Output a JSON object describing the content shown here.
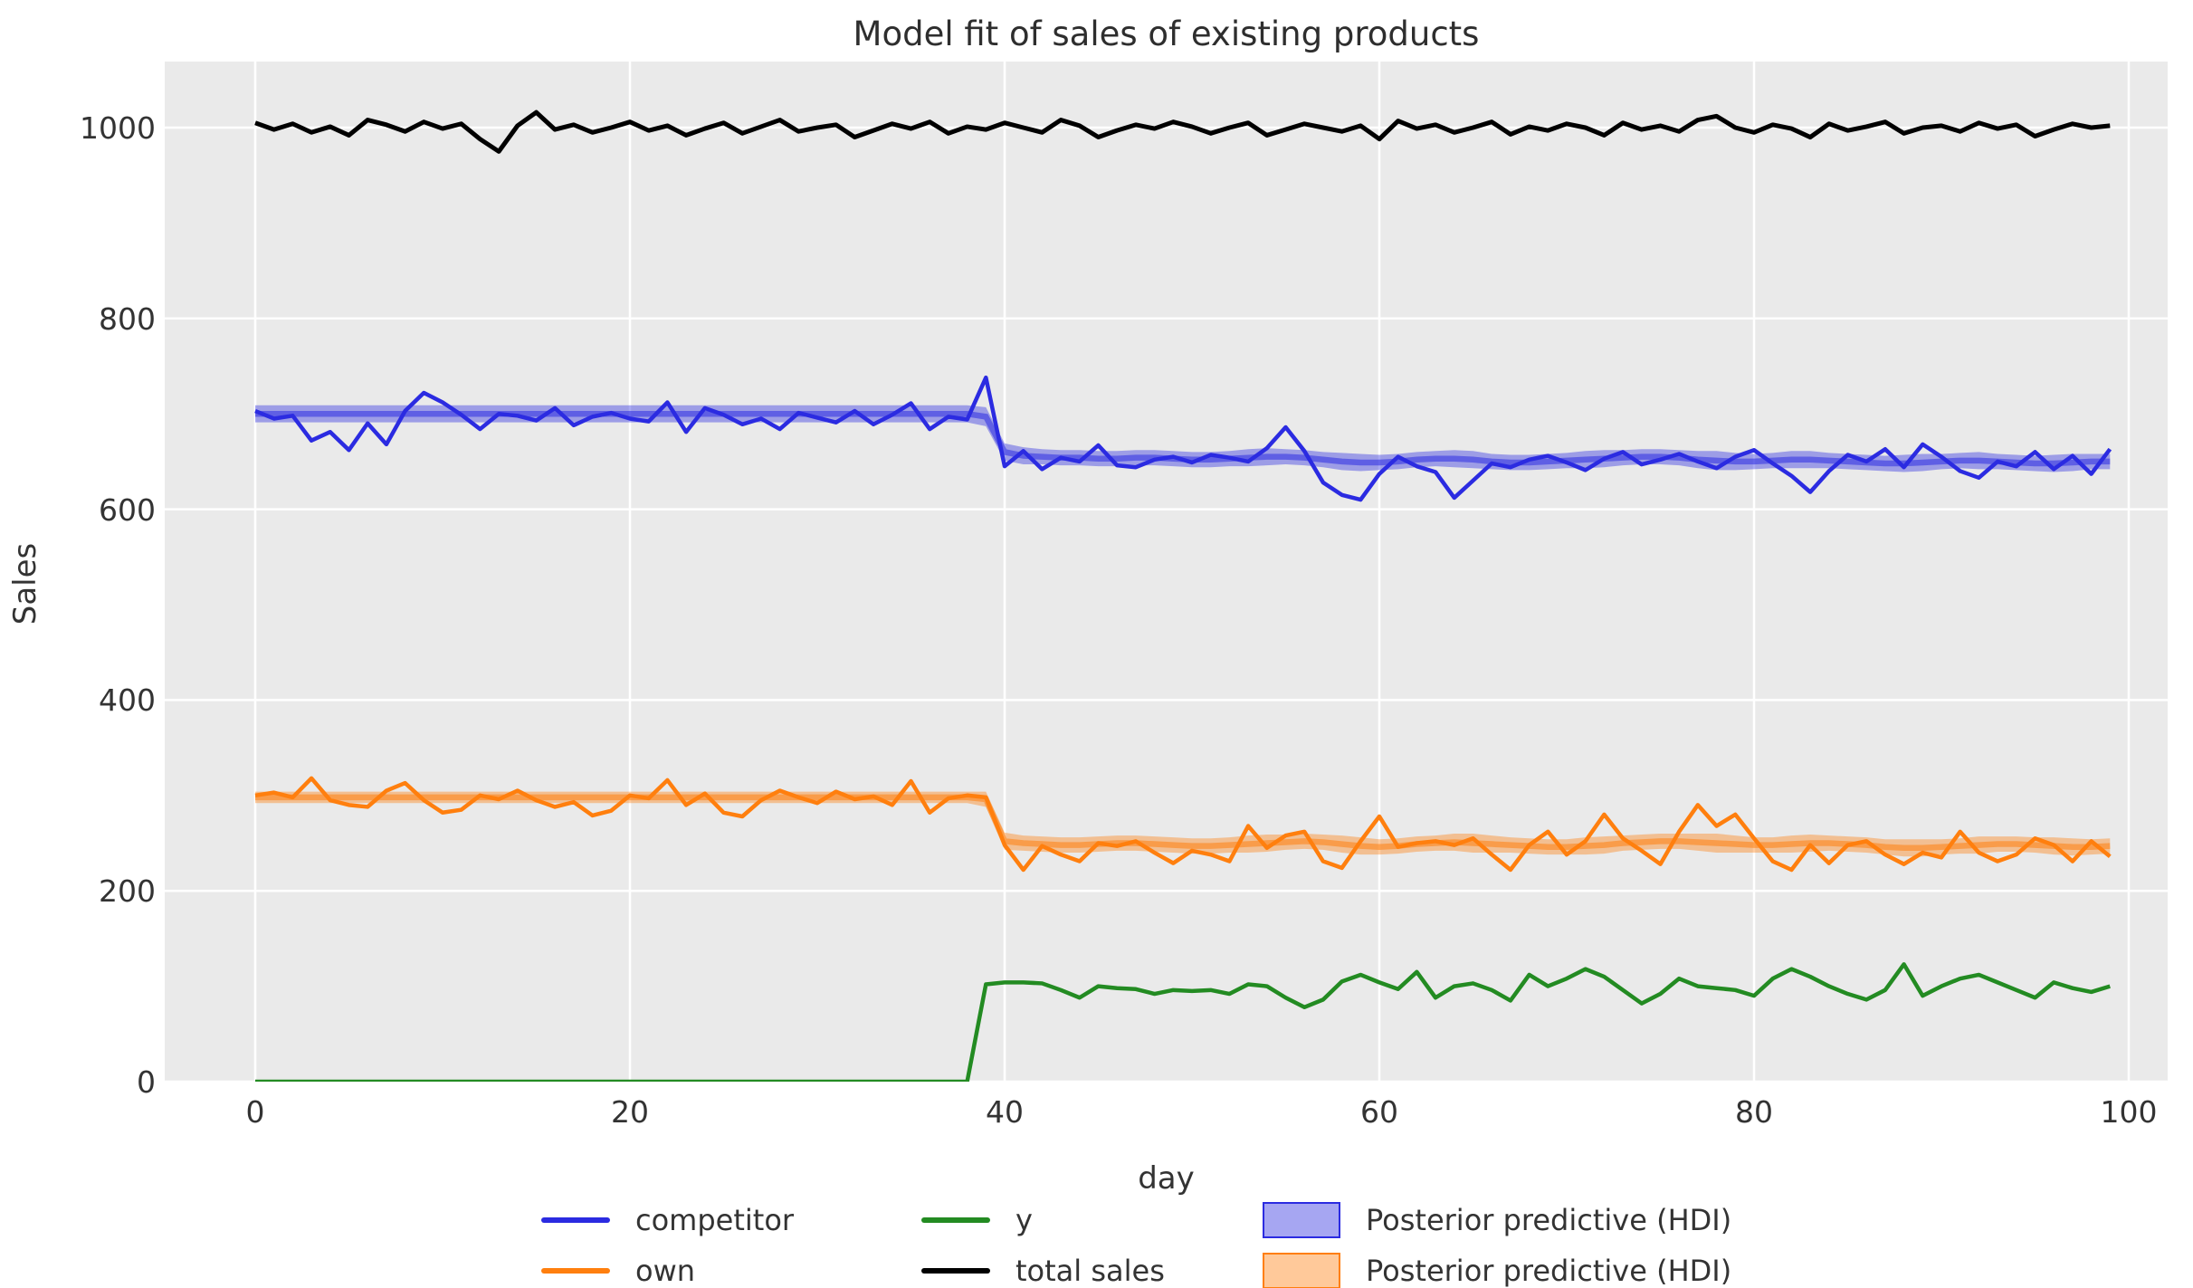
{
  "chart_data": {
    "type": "line",
    "title": "Model fit of sales of existing products",
    "xlabel": "day",
    "ylabel": "Sales",
    "x_ticks": [
      0,
      20,
      40,
      60,
      80,
      100
    ],
    "y_ticks": [
      0,
      200,
      400,
      600,
      800,
      1000
    ],
    "xlim": [
      -4.8,
      102
    ],
    "ylim": [
      0,
      1069
    ],
    "grid": "on",
    "n_days": 100,
    "x_is_day_index": true,
    "legend_position": "below-axes",
    "colors": {
      "competitor": "#2b2be1",
      "own": "#ff7f0e",
      "y": "#238b22",
      "total_sales": "#000000",
      "plot_background": "#eaeaea",
      "grid": "#ffffff",
      "text": "#333333",
      "title_text": "#2e2e2e"
    },
    "series": [
      {
        "name": "competitor",
        "color": "#2b2be1",
        "values": [
          703,
          695,
          698,
          672,
          681,
          662,
          690,
          668,
          703,
          722,
          712,
          699,
          684,
          700,
          698,
          693,
          706,
          688,
          697,
          701,
          695,
          692,
          712,
          681,
          706,
          699,
          689,
          695,
          684,
          701,
          696,
          691,
          703,
          689,
          699,
          711,
          684,
          697,
          694,
          738,
          645,
          661,
          642,
          654,
          650,
          667,
          646,
          644,
          652,
          655,
          649,
          657,
          654,
          650,
          664,
          686,
          661,
          628,
          615,
          610,
          637,
          655,
          645,
          639,
          612,
          630,
          648,
          644,
          652,
          656,
          649,
          641,
          653,
          660,
          647,
          652,
          658,
          650,
          643,
          655,
          662,
          648,
          635,
          618,
          640,
          657,
          650,
          663,
          644,
          668,
          655,
          640,
          633,
          650,
          645,
          660,
          642,
          656,
          637,
          663
        ]
      },
      {
        "name": "own",
        "color": "#ff7f0e",
        "values": [
          300,
          303,
          298,
          318,
          295,
          290,
          288,
          305,
          313,
          295,
          282,
          285,
          300,
          296,
          305,
          295,
          288,
          293,
          279,
          284,
          300,
          297,
          316,
          290,
          302,
          282,
          278,
          295,
          305,
          298,
          292,
          304,
          296,
          299,
          290,
          315,
          282,
          297,
          300,
          298,
          248,
          222,
          247,
          238,
          231,
          250,
          247,
          252,
          240,
          229,
          242,
          238,
          231,
          268,
          245,
          258,
          262,
          231,
          224,
          252,
          278,
          246,
          250,
          252,
          248,
          255,
          238,
          222,
          248,
          262,
          238,
          252,
          280,
          255,
          242,
          228,
          262,
          290,
          268,
          280,
          255,
          231,
          222,
          248,
          229,
          248,
          252,
          238,
          228,
          240,
          235,
          262,
          240,
          231,
          238,
          255,
          248,
          231,
          252,
          236
        ]
      },
      {
        "name": "y",
        "color": "#238b22",
        "values": [
          0,
          0,
          0,
          0,
          0,
          0,
          0,
          0,
          0,
          0,
          0,
          0,
          0,
          0,
          0,
          0,
          0,
          0,
          0,
          0,
          0,
          0,
          0,
          0,
          0,
          0,
          0,
          0,
          0,
          0,
          0,
          0,
          0,
          0,
          0,
          0,
          0,
          0,
          0,
          102,
          104,
          104,
          103,
          96,
          88,
          100,
          98,
          97,
          92,
          96,
          95,
          96,
          92,
          102,
          100,
          88,
          78,
          86,
          105,
          112,
          104,
          97,
          115,
          88,
          100,
          103,
          96,
          85,
          112,
          100,
          108,
          118,
          110,
          96,
          82,
          92,
          108,
          100,
          98,
          96,
          90,
          108,
          118,
          110,
          100,
          92,
          86,
          96,
          123,
          90,
          100,
          108,
          112,
          104,
          96,
          88,
          104,
          98,
          94,
          100
        ]
      },
      {
        "name": "total sales",
        "color": "#000000",
        "values": [
          1005,
          998,
          1004,
          995,
          1001,
          992,
          1008,
          1003,
          996,
          1006,
          999,
          1004,
          988,
          975,
          1002,
          1016,
          998,
          1003,
          995,
          1000,
          1006,
          997,
          1002,
          992,
          999,
          1005,
          994,
          1001,
          1008,
          996,
          1000,
          1003,
          990,
          997,
          1004,
          999,
          1006,
          994,
          1001,
          998,
          1005,
          1000,
          995,
          1008,
          1002,
          990,
          997,
          1003,
          999,
          1006,
          1001,
          994,
          1000,
          1005,
          992,
          998,
          1004,
          1000,
          996,
          1002,
          988,
          1007,
          999,
          1003,
          995,
          1000,
          1006,
          993,
          1001,
          997,
          1004,
          1000,
          992,
          1005,
          998,
          1002,
          996,
          1008,
          1012,
          1000,
          995,
          1003,
          999,
          990,
          1004,
          997,
          1001,
          1006,
          994,
          1000,
          1002,
          996,
          1005,
          999,
          1003,
          991,
          998,
          1004,
          1000,
          1002
        ]
      }
    ],
    "bands": [
      {
        "name": "Posterior predictive (HDI)",
        "color": "#2b2be1",
        "mean": [
          700,
          700,
          700,
          700,
          700,
          700,
          700,
          700,
          700,
          700,
          700,
          700,
          700,
          700,
          700,
          700,
          700,
          700,
          700,
          700,
          700,
          700,
          700,
          700,
          700,
          700,
          700,
          700,
          700,
          700,
          700,
          700,
          700,
          700,
          700,
          700,
          700,
          700,
          700,
          697,
          660,
          656,
          655,
          654,
          654,
          653,
          653,
          654,
          654,
          653,
          652,
          652,
          653,
          654,
          655,
          655,
          654,
          652,
          650,
          649,
          649,
          650,
          652,
          653,
          653,
          652,
          650,
          649,
          649,
          650,
          651,
          652,
          653,
          654,
          655,
          655,
          654,
          652,
          651,
          650,
          650,
          651,
          652,
          652,
          651,
          650,
          649,
          648,
          648,
          649,
          650,
          651,
          651,
          650,
          649,
          648,
          648,
          649,
          650,
          650
        ],
        "halfwidth": [
          9,
          9,
          9,
          9,
          9,
          9,
          9,
          9,
          9,
          9,
          9,
          9,
          9,
          9,
          9,
          9,
          9,
          9,
          9,
          9,
          9,
          9,
          9,
          9,
          9,
          9,
          9,
          9,
          9,
          9,
          9,
          9,
          9,
          9,
          9,
          9,
          9,
          9,
          9,
          10,
          9,
          9,
          8,
          8,
          8,
          8,
          8,
          8,
          8,
          8,
          8,
          8,
          8,
          9,
          9,
          8,
          8,
          8,
          9,
          9,
          8,
          8,
          8,
          8,
          9,
          9,
          8,
          8,
          8,
          8,
          8,
          9,
          9,
          8,
          8,
          8,
          8,
          9,
          10,
          9,
          8,
          8,
          9,
          9,
          8,
          8,
          8,
          8,
          9,
          9,
          8,
          8,
          9,
          8,
          8,
          8,
          9,
          9,
          8,
          8
        ]
      },
      {
        "name": "Posterior predictive (HDI)",
        "color": "#ff7f0e",
        "mean": [
          298,
          298,
          298,
          298,
          298,
          298,
          298,
          298,
          298,
          298,
          298,
          298,
          298,
          298,
          298,
          298,
          298,
          298,
          298,
          298,
          298,
          298,
          298,
          298,
          298,
          298,
          298,
          298,
          298,
          298,
          298,
          298,
          298,
          298,
          298,
          298,
          298,
          298,
          298,
          296,
          252,
          250,
          249,
          248,
          248,
          249,
          250,
          250,
          249,
          248,
          247,
          247,
          248,
          249,
          250,
          251,
          252,
          251,
          249,
          247,
          246,
          247,
          249,
          250,
          251,
          250,
          249,
          248,
          247,
          246,
          246,
          247,
          248,
          250,
          251,
          252,
          252,
          251,
          250,
          249,
          248,
          248,
          249,
          250,
          250,
          249,
          248,
          246,
          245,
          245,
          246,
          247,
          248,
          249,
          249,
          248,
          247,
          246,
          246,
          247
        ],
        "halfwidth": [
          6,
          6,
          6,
          6,
          6,
          6,
          6,
          6,
          6,
          6,
          6,
          6,
          6,
          6,
          6,
          6,
          6,
          6,
          6,
          6,
          6,
          6,
          6,
          6,
          6,
          6,
          6,
          6,
          6,
          6,
          6,
          6,
          6,
          6,
          6,
          6,
          6,
          6,
          6,
          8,
          9,
          8,
          8,
          8,
          8,
          8,
          8,
          8,
          8,
          8,
          8,
          8,
          8,
          9,
          9,
          8,
          8,
          8,
          9,
          9,
          8,
          8,
          8,
          8,
          9,
          10,
          9,
          8,
          8,
          8,
          8,
          9,
          9,
          8,
          8,
          8,
          8,
          9,
          10,
          9,
          8,
          8,
          9,
          9,
          8,
          8,
          8,
          8,
          9,
          9,
          8,
          8,
          9,
          8,
          8,
          8,
          9,
          9,
          8,
          8
        ]
      }
    ],
    "legend": {
      "items": [
        {
          "label": "competitor",
          "swatch": "line",
          "color": "#2b2be1"
        },
        {
          "label": "own",
          "swatch": "line",
          "color": "#ff7f0e"
        },
        {
          "label": "y",
          "swatch": "line",
          "color": "#238b22"
        },
        {
          "label": "total sales",
          "swatch": "line",
          "color": "#000000"
        },
        {
          "label": "Posterior predictive (HDI)",
          "swatch": "patch",
          "color": "#2b2be1"
        },
        {
          "label": "Posterior predictive (HDI)",
          "swatch": "patch",
          "color": "#ff7f0e"
        }
      ]
    }
  }
}
